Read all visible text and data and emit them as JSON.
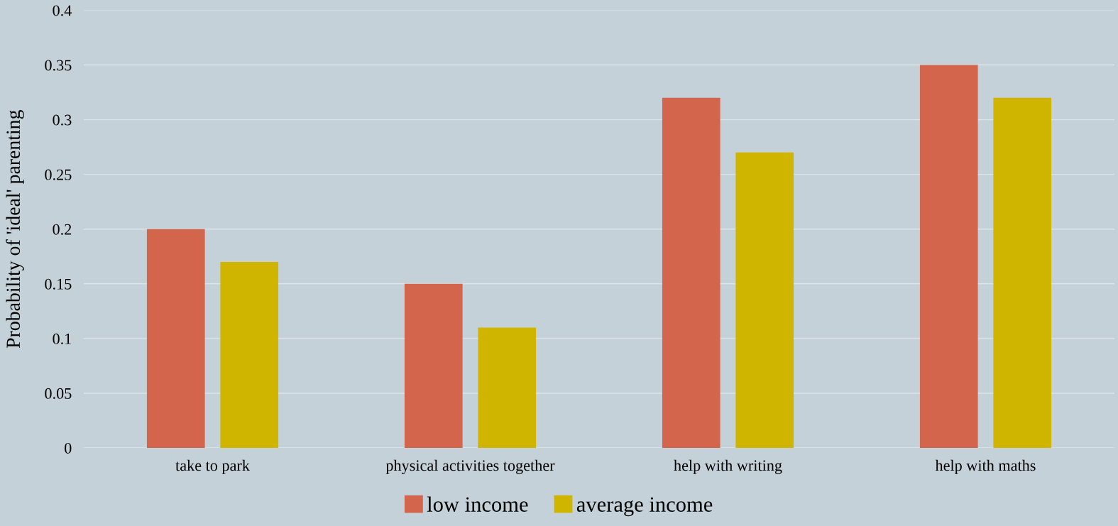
{
  "chart_data": {
    "type": "bar",
    "ylabel": "Probability of 'ideal' parenting",
    "categories": [
      "take to park",
      "physical activities together",
      "help with writing",
      "help with maths"
    ],
    "series": [
      {
        "name": "low income",
        "color": "#d2654b",
        "values": [
          0.2,
          0.15,
          0.32,
          0.35
        ]
      },
      {
        "name": "average income",
        "color": "#cfb500",
        "values": [
          0.17,
          0.11,
          0.27,
          0.32
        ]
      }
    ],
    "ylim": [
      0,
      0.4
    ],
    "yticks": [
      0,
      0.05,
      0.1,
      0.15,
      0.2,
      0.25,
      0.3,
      0.35,
      0.4
    ],
    "grid": "y",
    "legend": "bottom"
  }
}
